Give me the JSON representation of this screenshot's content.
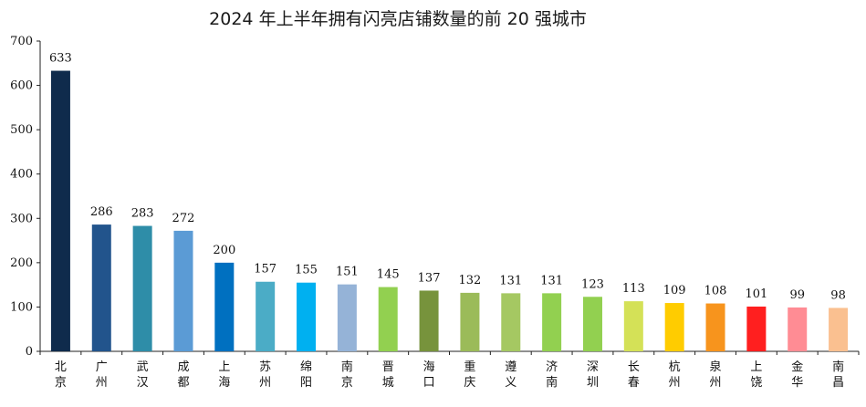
{
  "chart_data": {
    "type": "bar",
    "title": "2024 年上半年拥有闪亮店铺数量的前 20 强城市",
    "categories": [
      "北京",
      "广州",
      "武汉",
      "成都",
      "上海",
      "苏州",
      "绵阳",
      "南京",
      "晋城",
      "海口",
      "重庆",
      "遵义",
      "济南",
      "深圳",
      "长春",
      "杭州",
      "泉州",
      "上饶",
      "金华",
      "南昌"
    ],
    "values": [
      633,
      286,
      283,
      272,
      200,
      157,
      155,
      151,
      145,
      137,
      132,
      131,
      131,
      123,
      113,
      109,
      108,
      101,
      99,
      98
    ],
    "colors": [
      "#0f2b4c",
      "#22548c",
      "#2e8da8",
      "#5b9bd5",
      "#0070c0",
      "#4bacc6",
      "#00b0f0",
      "#95b3d7",
      "#92d050",
      "#77933c",
      "#9bbb59",
      "#a5c862",
      "#92d050",
      "#92d050",
      "#d4e157",
      "#ffcc00",
      "#f7941d",
      "#ff1f1f",
      "#ff8c94",
      "#fac090"
    ],
    "ylim": [
      0,
      700
    ],
    "yticks": [
      0,
      100,
      200,
      300,
      400,
      500,
      600,
      700
    ],
    "xlabel": "",
    "ylabel": "",
    "grid": false,
    "legend": "none"
  }
}
